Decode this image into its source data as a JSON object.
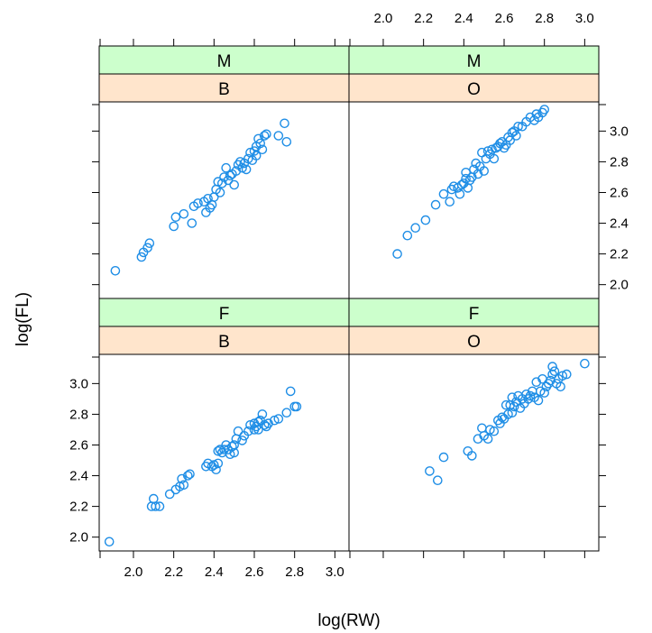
{
  "chart_data": {
    "type": "scatter",
    "xlabel": "log(RW)",
    "ylabel": "log(FL)",
    "xlim": [
      1.83,
      3.07
    ],
    "ylim": [
      1.91,
      3.19
    ],
    "x_ticks": [
      "2.0",
      "2.2",
      "2.4",
      "2.6",
      "2.8",
      "3.0"
    ],
    "y_ticks": [
      "2.0",
      "2.2",
      "2.4",
      "2.6",
      "2.8",
      "3.0"
    ],
    "colors": {
      "marker": "#1f8ee6",
      "strip_top": "#ccffcc",
      "strip_bottom": "#ffe5cc"
    },
    "panels": [
      {
        "sex": "F",
        "species": "B",
        "points": [
          [
            1.88,
            1.97
          ],
          [
            2.09,
            2.2
          ],
          [
            2.1,
            2.25
          ],
          [
            2.11,
            2.2
          ],
          [
            2.13,
            2.2
          ],
          [
            2.18,
            2.28
          ],
          [
            2.21,
            2.31
          ],
          [
            2.23,
            2.33
          ],
          [
            2.24,
            2.38
          ],
          [
            2.25,
            2.34
          ],
          [
            2.27,
            2.4
          ],
          [
            2.28,
            2.41
          ],
          [
            2.36,
            2.46
          ],
          [
            2.37,
            2.48
          ],
          [
            2.39,
            2.46
          ],
          [
            2.4,
            2.47
          ],
          [
            2.41,
            2.44
          ],
          [
            2.42,
            2.48
          ],
          [
            2.42,
            2.56
          ],
          [
            2.43,
            2.57
          ],
          [
            2.44,
            2.55
          ],
          [
            2.45,
            2.57
          ],
          [
            2.46,
            2.6
          ],
          [
            2.47,
            2.57
          ],
          [
            2.48,
            2.54
          ],
          [
            2.49,
            2.59
          ],
          [
            2.5,
            2.55
          ],
          [
            2.5,
            2.6
          ],
          [
            2.51,
            2.64
          ],
          [
            2.52,
            2.69
          ],
          [
            2.54,
            2.63
          ],
          [
            2.55,
            2.66
          ],
          [
            2.57,
            2.69
          ],
          [
            2.58,
            2.73
          ],
          [
            2.6,
            2.7
          ],
          [
            2.6,
            2.74
          ],
          [
            2.61,
            2.72
          ],
          [
            2.62,
            2.75
          ],
          [
            2.62,
            2.7
          ],
          [
            2.63,
            2.76
          ],
          [
            2.64,
            2.8
          ],
          [
            2.65,
            2.73
          ],
          [
            2.66,
            2.72
          ],
          [
            2.67,
            2.74
          ],
          [
            2.7,
            2.76
          ],
          [
            2.72,
            2.77
          ],
          [
            2.76,
            2.81
          ],
          [
            2.78,
            2.95
          ],
          [
            2.8,
            2.85
          ],
          [
            2.81,
            2.85
          ]
        ]
      },
      {
        "sex": "F",
        "species": "O",
        "points": [
          [
            2.23,
            2.43
          ],
          [
            2.27,
            2.37
          ],
          [
            2.3,
            2.52
          ],
          [
            2.42,
            2.56
          ],
          [
            2.44,
            2.53
          ],
          [
            2.47,
            2.64
          ],
          [
            2.49,
            2.71
          ],
          [
            2.5,
            2.66
          ],
          [
            2.52,
            2.64
          ],
          [
            2.53,
            2.7
          ],
          [
            2.55,
            2.69
          ],
          [
            2.57,
            2.76
          ],
          [
            2.58,
            2.74
          ],
          [
            2.59,
            2.78
          ],
          [
            2.6,
            2.77
          ],
          [
            2.61,
            2.86
          ],
          [
            2.62,
            2.8
          ],
          [
            2.63,
            2.86
          ],
          [
            2.64,
            2.81
          ],
          [
            2.64,
            2.91
          ],
          [
            2.65,
            2.85
          ],
          [
            2.66,
            2.88
          ],
          [
            2.67,
            2.92
          ],
          [
            2.68,
            2.84
          ],
          [
            2.69,
            2.9
          ],
          [
            2.7,
            2.87
          ],
          [
            2.71,
            2.93
          ],
          [
            2.72,
            2.9
          ],
          [
            2.73,
            2.92
          ],
          [
            2.74,
            2.95
          ],
          [
            2.75,
            2.91
          ],
          [
            2.76,
            3.01
          ],
          [
            2.77,
            2.89
          ],
          [
            2.78,
            2.95
          ],
          [
            2.79,
            3.03
          ],
          [
            2.8,
            2.94
          ],
          [
            2.81,
            2.98
          ],
          [
            2.82,
            3.0
          ],
          [
            2.83,
            3.02
          ],
          [
            2.84,
            3.06
          ],
          [
            2.84,
            3.11
          ],
          [
            2.85,
            3.08
          ],
          [
            2.86,
            3.0
          ],
          [
            2.87,
            3.03
          ],
          [
            2.88,
            2.98
          ],
          [
            2.89,
            3.05
          ],
          [
            2.91,
            3.06
          ],
          [
            3.0,
            3.13
          ]
        ]
      },
      {
        "sex": "M",
        "species": "B",
        "points": [
          [
            1.91,
            2.09
          ],
          [
            2.04,
            2.18
          ],
          [
            2.05,
            2.21
          ],
          [
            2.07,
            2.24
          ],
          [
            2.08,
            2.27
          ],
          [
            2.2,
            2.38
          ],
          [
            2.21,
            2.44
          ],
          [
            2.25,
            2.46
          ],
          [
            2.29,
            2.4
          ],
          [
            2.3,
            2.51
          ],
          [
            2.32,
            2.53
          ],
          [
            2.35,
            2.54
          ],
          [
            2.36,
            2.47
          ],
          [
            2.37,
            2.56
          ],
          [
            2.38,
            2.5
          ],
          [
            2.39,
            2.52
          ],
          [
            2.4,
            2.57
          ],
          [
            2.41,
            2.62
          ],
          [
            2.42,
            2.67
          ],
          [
            2.43,
            2.6
          ],
          [
            2.44,
            2.66
          ],
          [
            2.45,
            2.7
          ],
          [
            2.46,
            2.76
          ],
          [
            2.47,
            2.68
          ],
          [
            2.48,
            2.71
          ],
          [
            2.49,
            2.72
          ],
          [
            2.5,
            2.65
          ],
          [
            2.51,
            2.74
          ],
          [
            2.52,
            2.78
          ],
          [
            2.53,
            2.8
          ],
          [
            2.54,
            2.76
          ],
          [
            2.55,
            2.79
          ],
          [
            2.56,
            2.75
          ],
          [
            2.57,
            2.82
          ],
          [
            2.58,
            2.86
          ],
          [
            2.59,
            2.81
          ],
          [
            2.6,
            2.87
          ],
          [
            2.61,
            2.84
          ],
          [
            2.61,
            2.9
          ],
          [
            2.62,
            2.95
          ],
          [
            2.63,
            2.92
          ],
          [
            2.64,
            2.88
          ],
          [
            2.65,
            2.97
          ],
          [
            2.66,
            2.98
          ],
          [
            2.72,
            2.97
          ],
          [
            2.75,
            3.05
          ],
          [
            2.76,
            2.93
          ]
        ]
      },
      {
        "sex": "M",
        "species": "O",
        "points": [
          [
            2.07,
            2.2
          ],
          [
            2.12,
            2.32
          ],
          [
            2.16,
            2.37
          ],
          [
            2.21,
            2.42
          ],
          [
            2.26,
            2.52
          ],
          [
            2.3,
            2.59
          ],
          [
            2.33,
            2.54
          ],
          [
            2.34,
            2.62
          ],
          [
            2.35,
            2.64
          ],
          [
            2.37,
            2.63
          ],
          [
            2.38,
            2.59
          ],
          [
            2.39,
            2.65
          ],
          [
            2.4,
            2.66
          ],
          [
            2.41,
            2.69
          ],
          [
            2.41,
            2.73
          ],
          [
            2.42,
            2.63
          ],
          [
            2.43,
            2.68
          ],
          [
            2.44,
            2.7
          ],
          [
            2.45,
            2.75
          ],
          [
            2.46,
            2.79
          ],
          [
            2.47,
            2.72
          ],
          [
            2.48,
            2.77
          ],
          [
            2.49,
            2.86
          ],
          [
            2.5,
            2.74
          ],
          [
            2.51,
            2.82
          ],
          [
            2.52,
            2.87
          ],
          [
            2.53,
            2.85
          ],
          [
            2.54,
            2.88
          ],
          [
            2.55,
            2.82
          ],
          [
            2.56,
            2.89
          ],
          [
            2.57,
            2.9
          ],
          [
            2.58,
            2.92
          ],
          [
            2.59,
            2.93
          ],
          [
            2.6,
            2.89
          ],
          [
            2.61,
            2.91
          ],
          [
            2.62,
            2.96
          ],
          [
            2.63,
            2.94
          ],
          [
            2.64,
            2.99
          ],
          [
            2.65,
            3.0
          ],
          [
            2.66,
            2.97
          ],
          [
            2.67,
            3.03
          ],
          [
            2.69,
            3.03
          ],
          [
            2.71,
            3.06
          ],
          [
            2.73,
            3.09
          ],
          [
            2.75,
            3.07
          ],
          [
            2.76,
            3.11
          ],
          [
            2.77,
            3.09
          ],
          [
            2.79,
            3.12
          ],
          [
            2.8,
            3.14
          ]
        ]
      }
    ]
  }
}
